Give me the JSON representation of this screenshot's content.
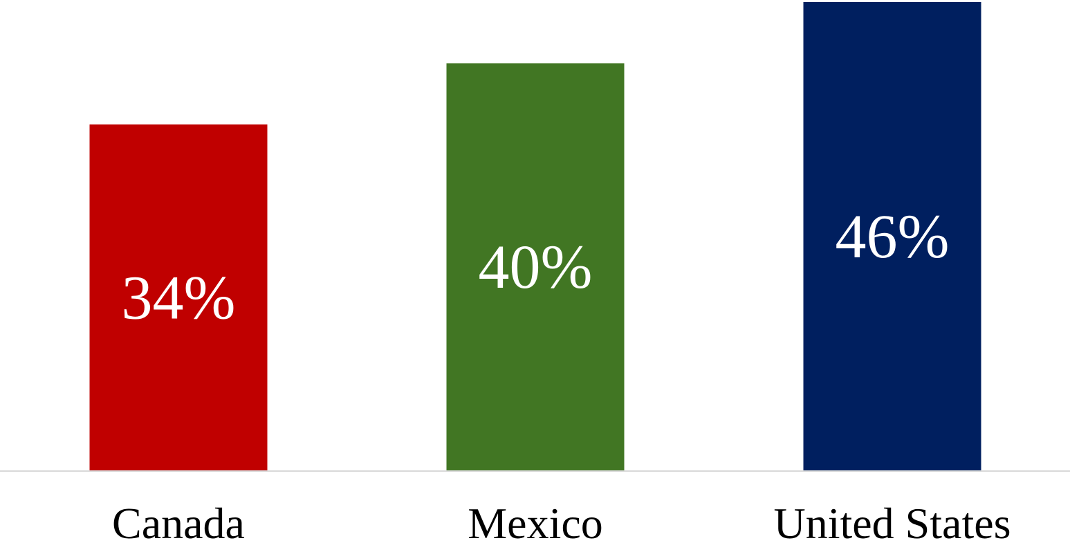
{
  "chart_data": {
    "type": "bar",
    "categories": [
      "Canada",
      "Mexico",
      "United States"
    ],
    "values": [
      34,
      40,
      46
    ],
    "data_labels": [
      "34%",
      "40%",
      "46%"
    ],
    "colors": [
      "#c00000",
      "#417623",
      "#001f5f"
    ],
    "title": "",
    "xlabel": "",
    "ylabel": "",
    "ylim": [
      0,
      46
    ],
    "grid": false,
    "legend": "none"
  }
}
